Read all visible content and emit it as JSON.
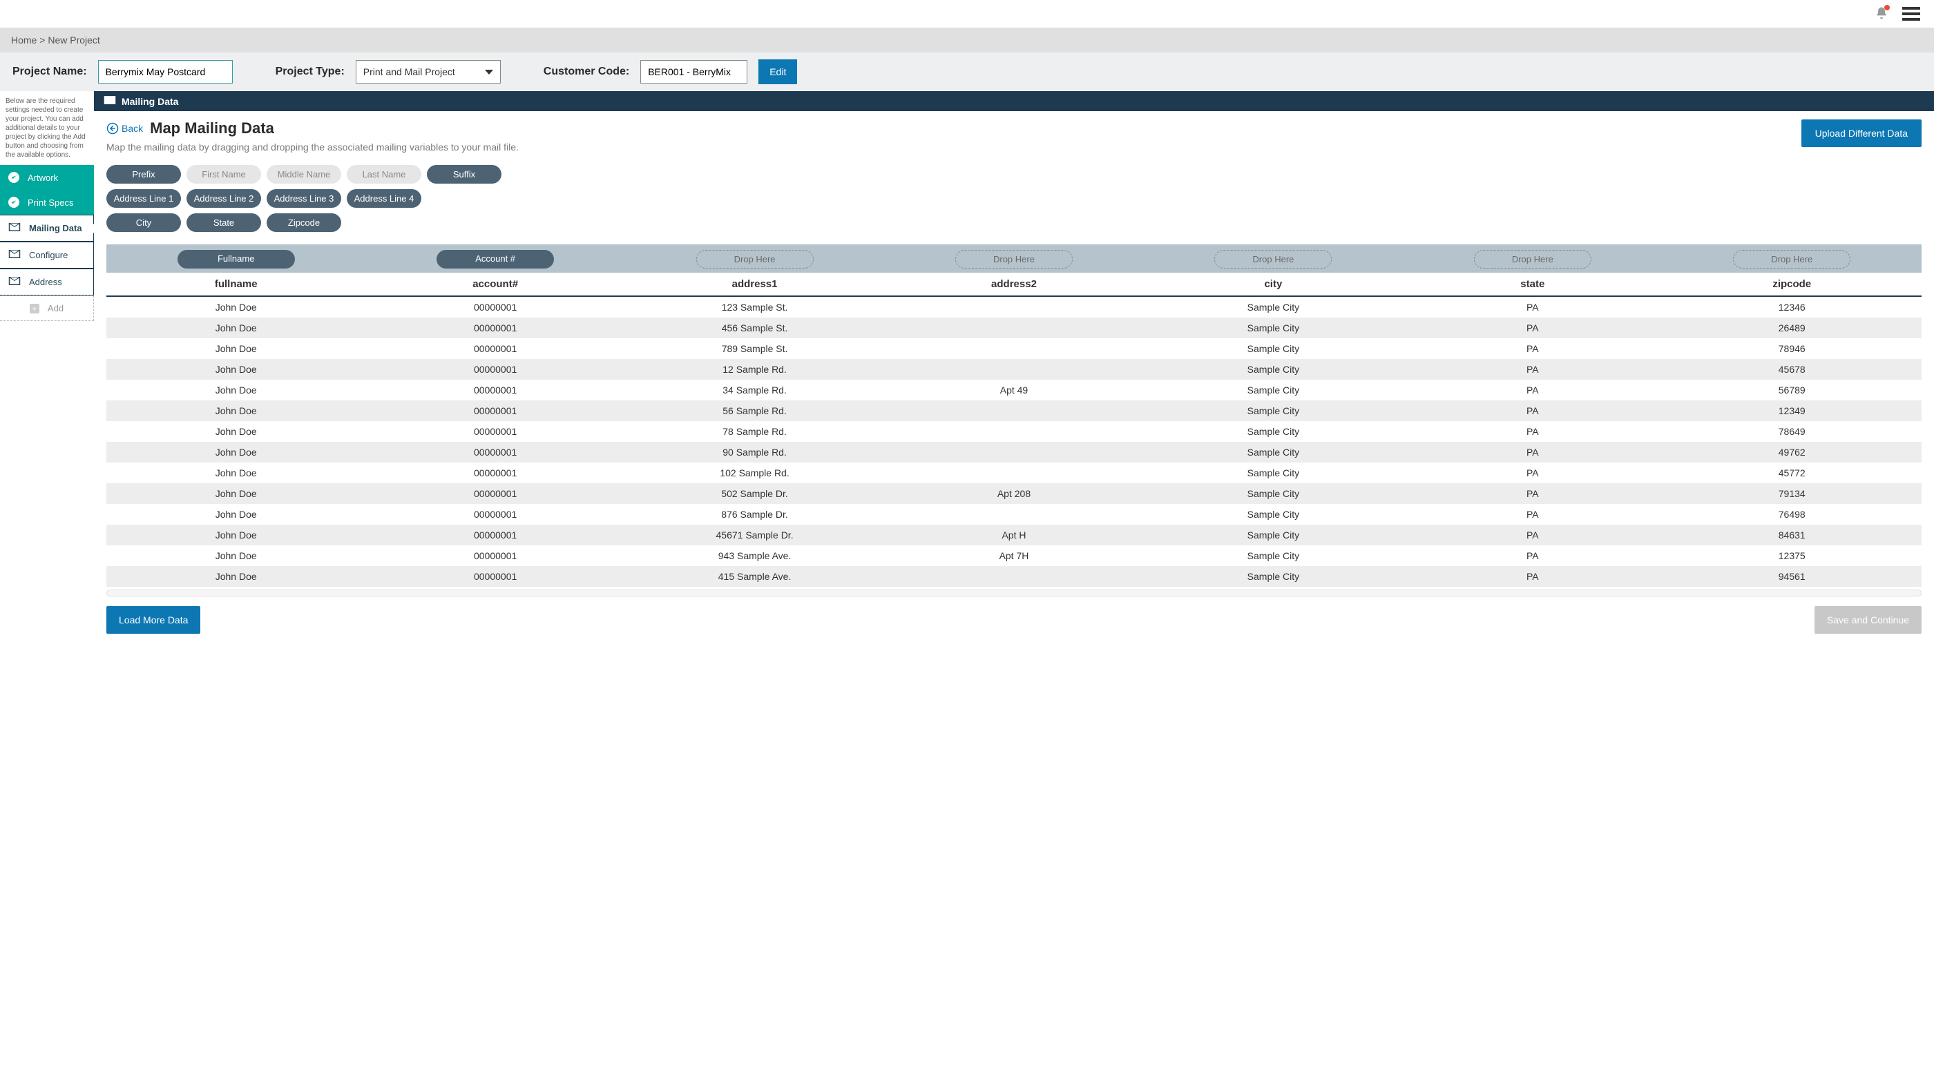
{
  "topbar": {
    "notification_dot": true
  },
  "breadcrumb": {
    "home": "Home",
    "sep": ">",
    "current": "New Project"
  },
  "project_bar": {
    "name_label": "Project Name:",
    "name_value": "Berrymix May Postcard",
    "type_label": "Project Type:",
    "type_value": "Print and Mail Project",
    "customer_label": "Customer Code:",
    "customer_value": "BER001 - BerryMix",
    "edit_label": "Edit"
  },
  "sidebar": {
    "note": "Below are the required settings needed to create your project. You can add additional details to your project by clicking the Add button and choosing from the available options.",
    "items": [
      {
        "kind": "teal",
        "icon": "check",
        "label": "Artwork"
      },
      {
        "kind": "teal",
        "icon": "check",
        "label": "Print Specs"
      },
      {
        "kind": "active",
        "icon": "mail",
        "label": "Mailing Data"
      },
      {
        "kind": "white",
        "icon": "mail",
        "label": "Configure"
      },
      {
        "kind": "white",
        "icon": "mail",
        "label": "Address"
      },
      {
        "kind": "add",
        "icon": "plus",
        "label": "Add"
      }
    ]
  },
  "tab": {
    "icon": "mail",
    "label": "Mailing Data"
  },
  "page": {
    "back_label": "Back",
    "title": "Map Mailing Data",
    "subtitle": "Map the mailing data by dragging and dropping the associated mailing variables to your mail file.",
    "upload_label": "Upload Different Data"
  },
  "pills": {
    "rows": [
      [
        {
          "label": "Prefix",
          "style": "dark"
        },
        {
          "label": "First Name",
          "style": "light"
        },
        {
          "label": "Middle Name",
          "style": "light"
        },
        {
          "label": "Last Name",
          "style": "light"
        },
        {
          "label": "Suffix",
          "style": "dark"
        }
      ],
      [
        {
          "label": "Address Line 1",
          "style": "dark"
        },
        {
          "label": "Address Line 2",
          "style": "dark"
        },
        {
          "label": "Address Line 3",
          "style": "dark"
        },
        {
          "label": "Address Line 4",
          "style": "dark"
        }
      ],
      [
        {
          "label": "City",
          "style": "dark"
        },
        {
          "label": "State",
          "style": "dark"
        },
        {
          "label": "Zipcode",
          "style": "dark"
        }
      ]
    ]
  },
  "table": {
    "drop_slots": [
      {
        "label": "Fullname",
        "filled": true
      },
      {
        "label": "Account #",
        "filled": true
      },
      {
        "label": "Drop Here",
        "filled": false
      },
      {
        "label": "Drop Here",
        "filled": false
      },
      {
        "label": "Drop Here",
        "filled": false
      },
      {
        "label": "Drop Here",
        "filled": false
      },
      {
        "label": "Drop Here",
        "filled": false
      }
    ],
    "columns": [
      "fullname",
      "account#",
      "address1",
      "address2",
      "city",
      "state",
      "zipcode"
    ],
    "rows": [
      [
        "John Doe",
        "00000001",
        "123 Sample St.",
        "",
        "Sample City",
        "PA",
        "12346"
      ],
      [
        "John Doe",
        "00000001",
        "456 Sample St.",
        "",
        "Sample City",
        "PA",
        "26489"
      ],
      [
        "John Doe",
        "00000001",
        "789 Sample St.",
        "",
        "Sample City",
        "PA",
        "78946"
      ],
      [
        "John Doe",
        "00000001",
        "12 Sample Rd.",
        "",
        "Sample City",
        "PA",
        "45678"
      ],
      [
        "John Doe",
        "00000001",
        "34 Sample Rd.",
        "Apt 49",
        "Sample City",
        "PA",
        "56789"
      ],
      [
        "John Doe",
        "00000001",
        "56 Sample Rd.",
        "",
        "Sample City",
        "PA",
        "12349"
      ],
      [
        "John Doe",
        "00000001",
        "78 Sample Rd.",
        "",
        "Sample City",
        "PA",
        "78649"
      ],
      [
        "John Doe",
        "00000001",
        "90 Sample Rd.",
        "",
        "Sample City",
        "PA",
        "49762"
      ],
      [
        "John Doe",
        "00000001",
        "102 Sample Rd.",
        "",
        "Sample City",
        "PA",
        "45772"
      ],
      [
        "John Doe",
        "00000001",
        "502 Sample Dr.",
        "Apt 208",
        "Sample City",
        "PA",
        "79134"
      ],
      [
        "John Doe",
        "00000001",
        "876 Sample Dr.",
        "",
        "Sample City",
        "PA",
        "76498"
      ],
      [
        "John Doe",
        "00000001",
        "45671 Sample Dr.",
        "Apt H",
        "Sample City",
        "PA",
        "84631"
      ],
      [
        "John Doe",
        "00000001",
        "943 Sample Ave.",
        "Apt 7H",
        "Sample City",
        "PA",
        "12375"
      ],
      [
        "John Doe",
        "00000001",
        "415 Sample Ave.",
        "",
        "Sample City",
        "PA",
        "94561"
      ]
    ]
  },
  "footer": {
    "load_label": "Load More Data",
    "save_label": "Save and Continue"
  },
  "colors": {
    "primary": "#0c77b3",
    "teal": "#00a99d",
    "navy": "#1e3a50",
    "pill_dark": "#4d6374",
    "pill_light": "#e6e6e6",
    "drop_bg": "#b5c3cc",
    "row_alt": "#ededed",
    "disabled": "#c8c8c8"
  }
}
